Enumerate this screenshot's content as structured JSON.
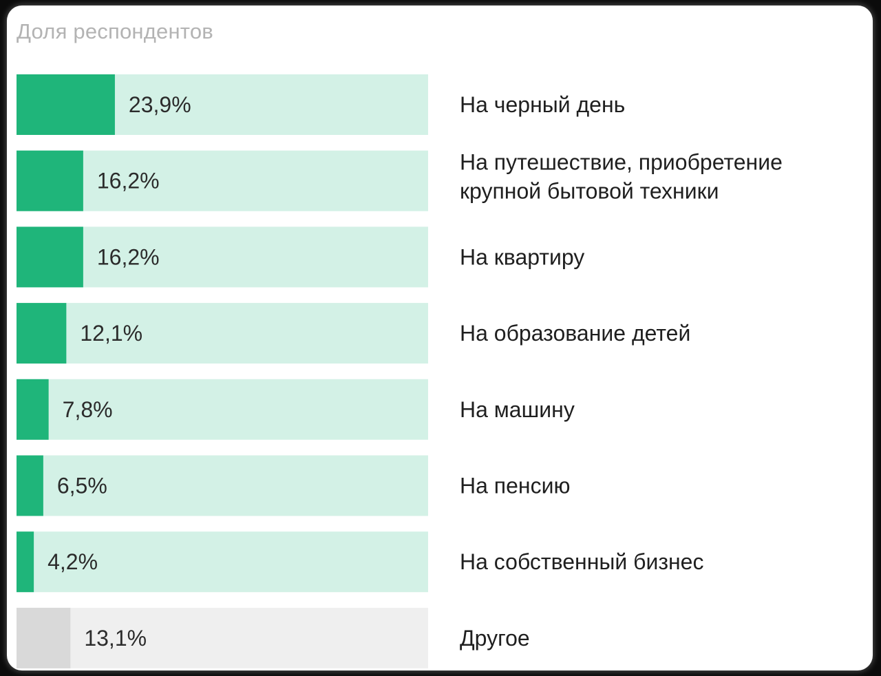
{
  "chart_data": {
    "type": "bar",
    "orientation": "horizontal",
    "title": "Доля респондентов",
    "xlim": [
      0,
      100
    ],
    "categories": [
      [
        "На черный день"
      ],
      [
        "На путешествие, приобретение",
        "крупной бытовой техники"
      ],
      [
        "На квартиру"
      ],
      [
        "На образование детей"
      ],
      [
        "На машину"
      ],
      [
        "На пенсию"
      ],
      [
        "На собственный бизнес"
      ],
      [
        "Другое"
      ]
    ],
    "values": [
      23.9,
      16.2,
      16.2,
      12.1,
      7.8,
      6.5,
      4.2,
      13.1
    ],
    "value_labels": [
      "23,9%",
      "16,2%",
      "16,2%",
      "12,1%",
      "7,8%",
      "6,5%",
      "4,2%",
      "13,1%"
    ],
    "colors": {
      "fill": [
        "#1fb57a",
        "#1fb57a",
        "#1fb57a",
        "#1fb57a",
        "#1fb57a",
        "#1fb57a",
        "#1fb57a",
        "#d9d9d9"
      ],
      "track": [
        "#d3f1e6",
        "#d3f1e6",
        "#d3f1e6",
        "#d3f1e6",
        "#d3f1e6",
        "#d3f1e6",
        "#d3f1e6",
        "#efefef"
      ]
    }
  }
}
